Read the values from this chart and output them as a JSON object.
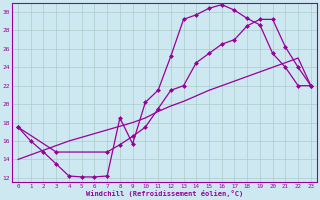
{
  "xlabel": "Windchill (Refroidissement éolien,°C)",
  "bg_color": "#cde8f0",
  "line_color": "#990099",
  "grid_color": "#aacccc",
  "xlim": [
    -0.5,
    23.5
  ],
  "ylim": [
    11.5,
    31.0
  ],
  "xticks": [
    0,
    1,
    2,
    3,
    4,
    5,
    6,
    7,
    8,
    9,
    10,
    11,
    12,
    13,
    14,
    15,
    16,
    17,
    18,
    19,
    20,
    21,
    22,
    23
  ],
  "yticks": [
    12,
    14,
    16,
    18,
    20,
    22,
    24,
    26,
    28,
    30
  ],
  "line1_x": [
    0,
    1,
    2,
    3,
    4,
    5,
    6,
    7,
    8,
    9,
    10,
    11,
    12,
    13,
    14,
    15,
    16,
    17,
    18,
    19,
    20,
    21,
    22,
    23
  ],
  "line1_y": [
    17.5,
    16.0,
    14.8,
    13.5,
    12.2,
    12.1,
    12.1,
    12.2,
    18.5,
    15.7,
    20.2,
    21.5,
    25.2,
    29.2,
    29.7,
    30.4,
    30.8,
    30.2,
    29.3,
    28.6,
    25.5,
    24.0,
    22.0,
    22.0
  ],
  "line2_x": [
    0,
    3,
    7,
    8,
    9,
    10,
    11,
    12,
    13,
    14,
    15,
    16,
    17,
    18,
    19,
    20,
    21,
    22,
    23
  ],
  "line2_y": [
    17.5,
    14.8,
    14.8,
    15.6,
    16.5,
    17.5,
    19.5,
    21.5,
    22.0,
    24.5,
    25.5,
    26.5,
    27.0,
    28.5,
    29.2,
    29.2,
    26.2,
    24.0,
    22.0
  ],
  "line3_x": [
    0,
    1,
    2,
    3,
    4,
    5,
    6,
    7,
    8,
    9,
    10,
    11,
    12,
    13,
    14,
    15,
    16,
    17,
    18,
    19,
    20,
    21,
    22,
    23
  ],
  "line3_y": [
    14.0,
    14.5,
    15.0,
    15.5,
    16.0,
    16.4,
    16.8,
    17.2,
    17.6,
    18.0,
    18.5,
    19.2,
    19.8,
    20.3,
    20.9,
    21.5,
    22.0,
    22.5,
    23.0,
    23.5,
    24.0,
    24.5,
    25.0,
    22.0
  ]
}
